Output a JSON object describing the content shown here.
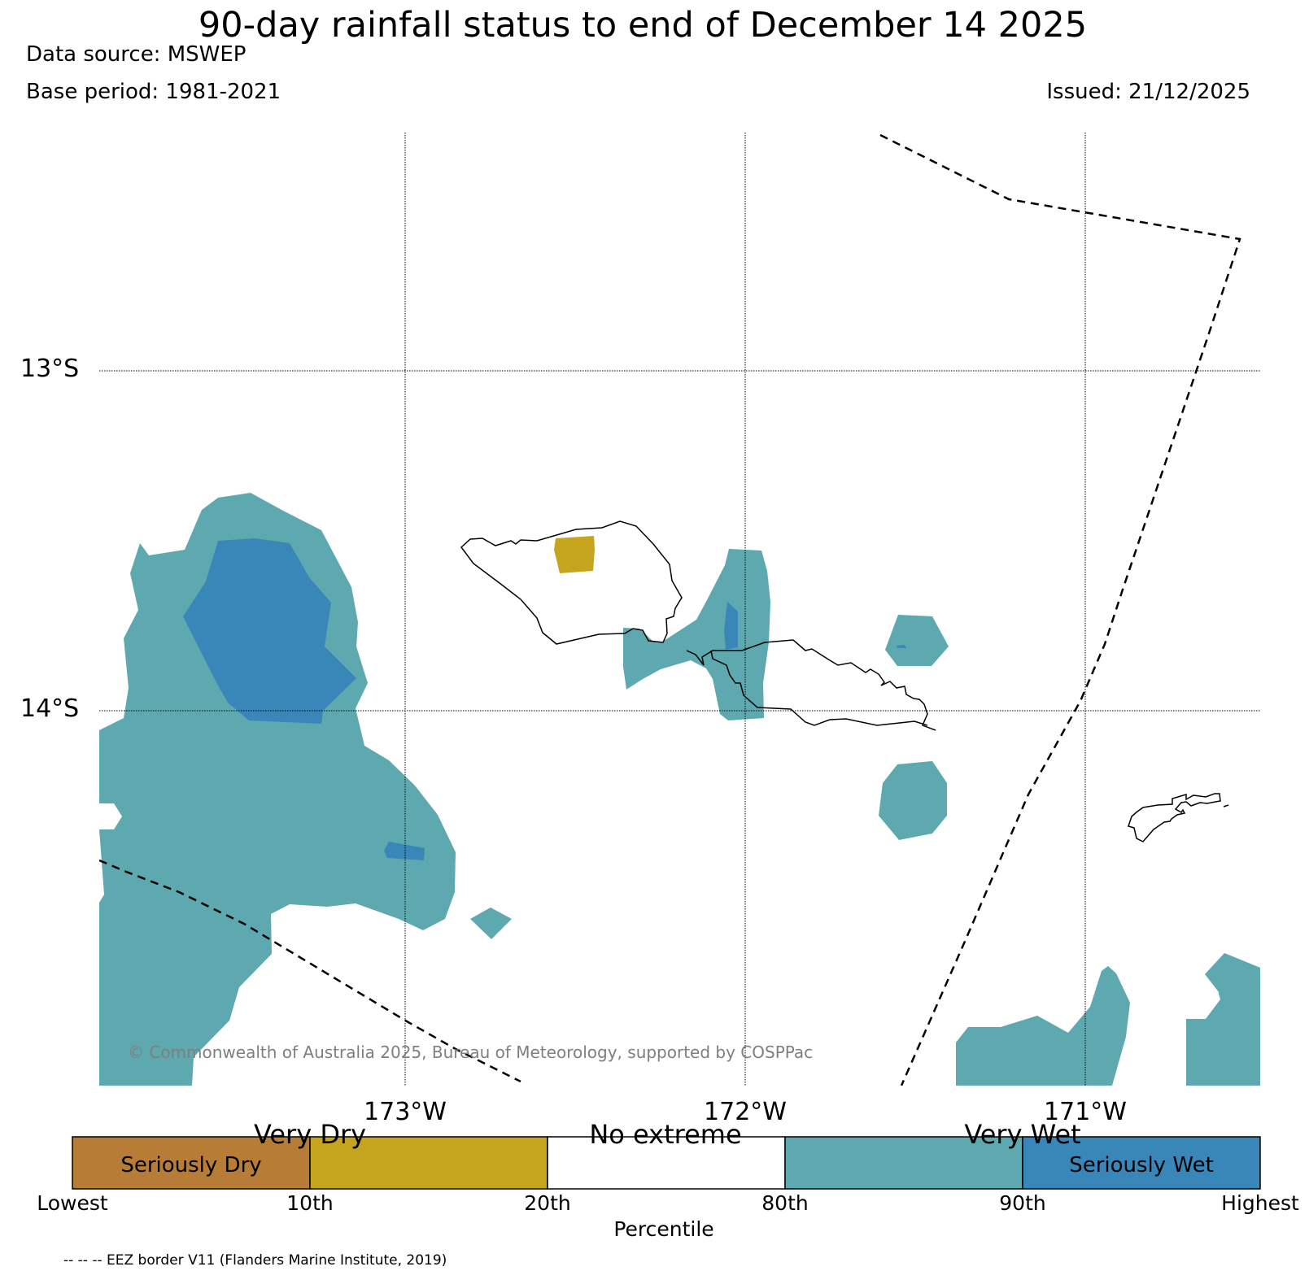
{
  "header": {
    "title": "90-day rainfall status to end of December 14 2025",
    "source": "Data source: MSWEP",
    "base_period": "Base period: 1981-2021",
    "issued": "Issued: 21/12/2025"
  },
  "map": {
    "lat_labels": [
      "13°S",
      "14°S"
    ],
    "lon_labels": [
      "173°W",
      "172°W",
      "171°W"
    ],
    "copyright": "© Commonwealth of Australia 2025, Bureau of Meteorology, supported by COSPPac",
    "colors": {
      "seriously_dry": "#b77d36",
      "very_dry": "#c6a51e",
      "no_extreme": "#ffffff",
      "very_wet": "#5ea8af",
      "seriously_wet": "#3986b8"
    }
  },
  "legend": {
    "categories": [
      "Very Dry",
      "No extreme",
      "Very Wet"
    ],
    "seriously_dry": "Seriously Dry",
    "seriously_wet": "Seriously Wet",
    "ticks": [
      "Lowest",
      "10th",
      "20th",
      "80th",
      "90th",
      "Highest"
    ],
    "axis_label": "Percentile",
    "eez_note": "-- -- -- EEZ border V11 (Flanders Marine Institute, 2019)"
  }
}
